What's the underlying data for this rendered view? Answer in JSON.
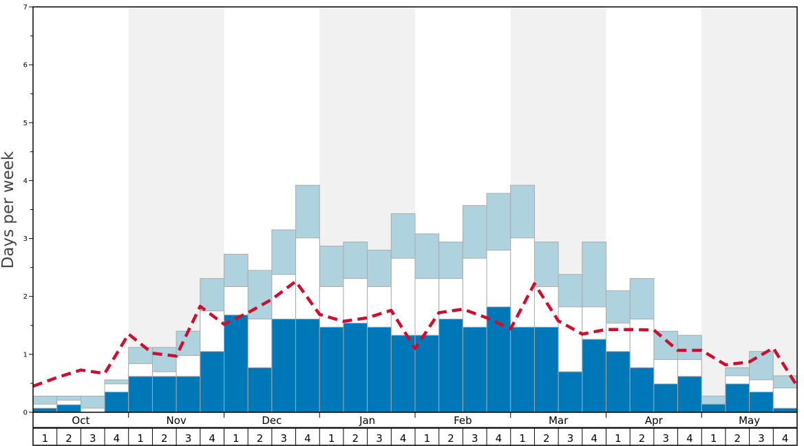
{
  "chart_data": {
    "type": "bar",
    "ylabel": "Days per week",
    "ylim": [
      0,
      7
    ],
    "y_ticks": [
      "0",
      "1",
      "2",
      "3",
      "4",
      "5",
      "6",
      "7"
    ],
    "months": [
      "Oct",
      "Nov",
      "Dec",
      "Jan",
      "Feb",
      "Mar",
      "Apr",
      "May"
    ],
    "week_labels": [
      "1",
      "2",
      "3",
      "4"
    ],
    "grid": false,
    "legend": "none",
    "colors": {
      "dark": "#0077b7",
      "white": "#ffffff",
      "light": "#aed3df",
      "line": "#cc0e2f",
      "band": "#f1f1f1",
      "edge": "#aaaaaa"
    },
    "series": [
      {
        "type": "bar",
        "values": [
          0.07,
          0.13,
          0.0,
          0.35,
          0.62,
          0.62,
          0.62,
          1.05,
          1.68,
          0.77,
          1.61,
          1.61,
          1.47,
          1.54,
          1.47,
          1.33,
          1.33,
          1.61,
          1.47,
          1.82,
          1.47,
          1.47,
          0.7,
          1.26,
          1.05,
          0.77,
          0.49,
          0.62,
          0.14,
          0.49,
          0.35,
          0.07
        ]
      },
      {
        "type": "bar",
        "values": [
          0.14,
          0.21,
          0.07,
          0.49,
          0.84,
          0.7,
          0.98,
          1.75,
          2.17,
          1.61,
          2.38,
          3.01,
          2.17,
          2.31,
          2.17,
          2.66,
          2.31,
          2.31,
          2.66,
          2.8,
          3.01,
          2.17,
          1.82,
          1.82,
          1.54,
          1.61,
          0.91,
          0.91,
          0.14,
          0.63,
          0.56,
          0.42
        ]
      },
      {
        "type": "bar",
        "values": [
          0.28,
          0.28,
          0.28,
          0.56,
          1.12,
          1.12,
          1.4,
          2.31,
          2.73,
          2.45,
          3.15,
          3.92,
          2.87,
          2.94,
          2.8,
          3.43,
          3.08,
          2.94,
          3.57,
          3.78,
          3.92,
          2.94,
          2.38,
          2.94,
          2.1,
          2.31,
          1.4,
          1.33,
          0.28,
          0.77,
          1.05,
          0.63
        ]
      },
      {
        "type": "line",
        "values": [
          0.45,
          0.6,
          0.73,
          0.67,
          1.35,
          1.02,
          0.97,
          1.83,
          1.52,
          1.72,
          1.95,
          2.26,
          1.69,
          1.57,
          1.63,
          1.76,
          1.1,
          1.72,
          1.78,
          1.63,
          1.44,
          2.22,
          1.58,
          1.35,
          1.43,
          1.43,
          1.42,
          1.07,
          1.07,
          0.82,
          0.87,
          1.11,
          0.45
        ]
      }
    ]
  }
}
